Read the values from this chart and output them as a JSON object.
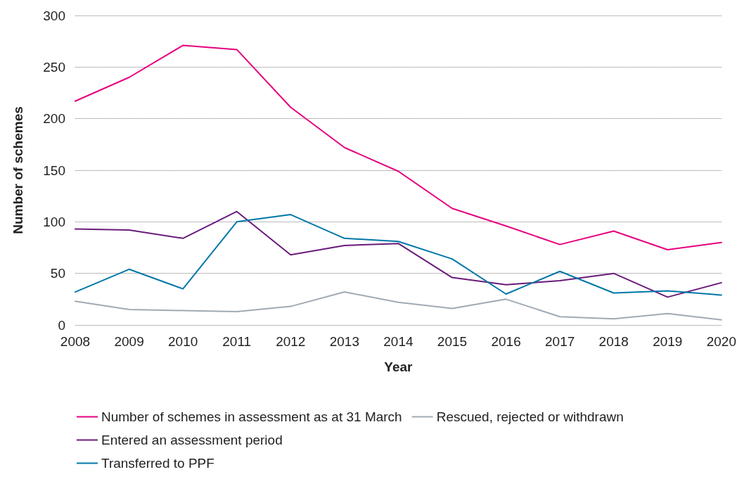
{
  "chart_data": {
    "type": "line",
    "xlabel": "Year",
    "ylabel": "Number of schemes",
    "categories": [
      "2008",
      "2009",
      "2010",
      "2011",
      "2012",
      "2013",
      "2014",
      "2015",
      "2016",
      "2017",
      "2018",
      "2019",
      "2020"
    ],
    "ylim": [
      0,
      300
    ],
    "yticks": [
      0,
      50,
      100,
      150,
      200,
      250,
      300
    ],
    "grid": "y",
    "legend": "bottom left",
    "marker": "none",
    "line_style": "solid",
    "series": [
      {
        "name": "Number of schemes in assessment as at 31 March",
        "color": "#e6007e",
        "values": [
          217,
          240,
          271,
          267,
          211,
          172,
          149,
          113,
          96,
          78,
          91,
          73,
          80
        ]
      },
      {
        "name": "Entered an assessment period",
        "color": "#6a1b7a",
        "values": [
          93,
          92,
          84,
          110,
          68,
          77,
          79,
          46,
          39,
          43,
          50,
          27,
          41
        ]
      },
      {
        "name": "Transferred to PPF",
        "color": "#0077a8",
        "values": [
          32,
          54,
          35,
          100,
          107,
          84,
          81,
          64,
          30,
          52,
          31,
          33,
          29
        ]
      },
      {
        "name": "Rescued, rejected or withdrawn",
        "color": "#a0aab4",
        "values": [
          23,
          15,
          14,
          13,
          18,
          32,
          22,
          16,
          25,
          8,
          6,
          11,
          5
        ]
      }
    ]
  }
}
